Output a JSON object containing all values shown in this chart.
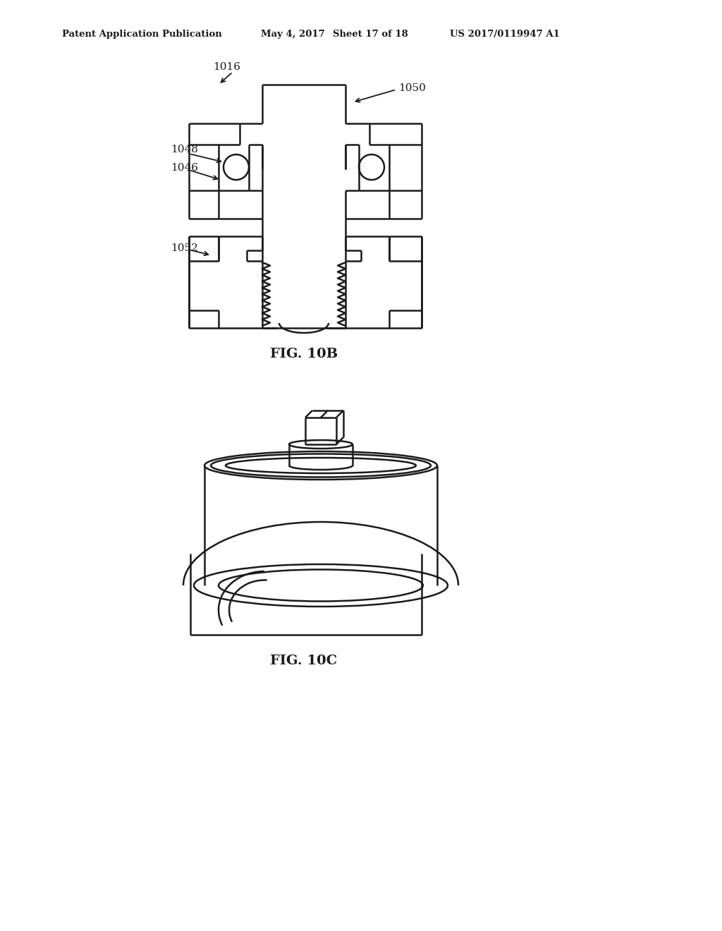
{
  "bg_color": "#ffffff",
  "line_color": "#1a1a1a",
  "header_text": "Patent Application Publication",
  "header_date": "May 4, 2017",
  "header_sheet": "Sheet 17 of 18",
  "header_patent": "US 2017/0119947 A1",
  "fig10b_label": "FIG. 10B",
  "fig10c_label": "FIG. 10C",
  "label_1016": "1016",
  "label_1050": "1050",
  "label_1048": "1048",
  "label_1046": "1046",
  "label_1052": "1052"
}
